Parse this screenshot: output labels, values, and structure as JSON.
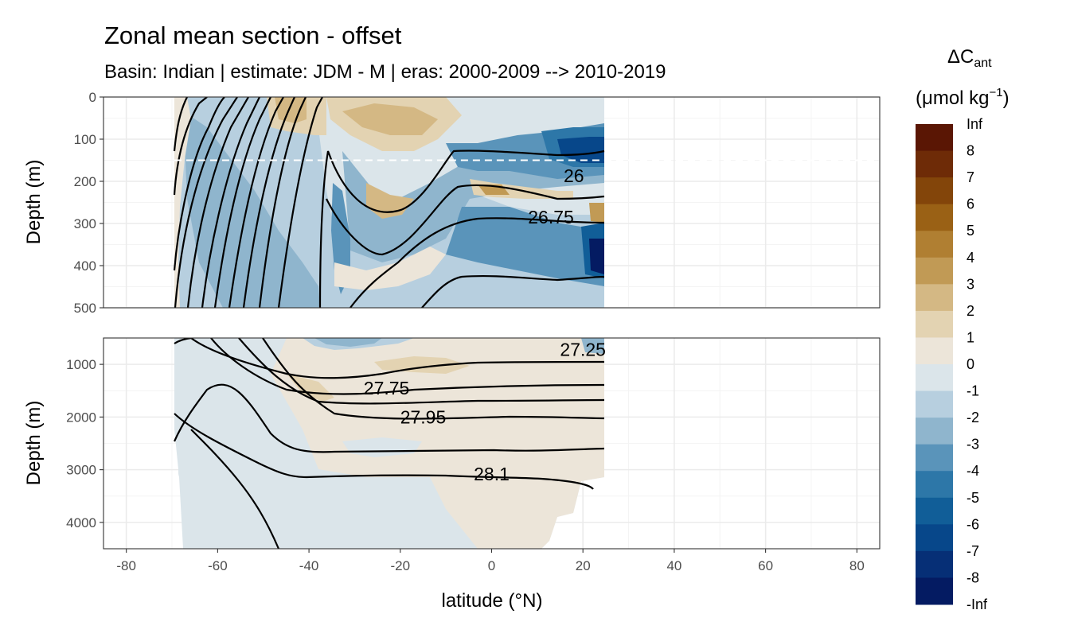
{
  "chart_data": {
    "type": "heatmap",
    "title": "Zonal mean section - offset",
    "subtitle": "Basin: Indian | estimate: JDM - M | eras: 2000-2009 --> 2010-2019",
    "xlabel": "latitude (°N)",
    "x_ticks": [
      -80,
      -60,
      -40,
      -20,
      0,
      20,
      40,
      60,
      80
    ],
    "xlim": [
      -85,
      85
    ],
    "data_lat_range": [
      -69.5,
      24.5
    ],
    "panels": [
      {
        "name": "upper",
        "ylabel": "Depth (m)",
        "ylim": [
          0,
          500
        ],
        "y_ticks": [
          0,
          100,
          200,
          300,
          400,
          500
        ],
        "reference_depth": 150,
        "isopycnal_labels": [
          {
            "label": "26",
            "lat": 18,
            "depth": 187
          },
          {
            "label": "26.75",
            "lat": 13,
            "depth": 285
          }
        ]
      },
      {
        "name": "lower",
        "ylabel": "Depth (m)",
        "ylim": [
          500,
          4500
        ],
        "y_ticks": [
          1000,
          2000,
          3000,
          4000
        ],
        "isopycnal_labels": [
          {
            "label": "27.25",
            "lat": 20,
            "depth": 720
          },
          {
            "label": "27.75",
            "lat": -23,
            "depth": 1450
          },
          {
            "label": "27.95",
            "lat": -15,
            "depth": 2000
          },
          {
            "label": "28.1",
            "lat": 0,
            "depth": 3080
          }
        ]
      }
    ],
    "legend": {
      "title_main": "ΔC",
      "title_sub": "ant",
      "unit_text": "(μmol kg",
      "unit_sup": "−1",
      "unit_close": ")",
      "levels": [
        "Inf",
        "8",
        "7",
        "6",
        "5",
        "4",
        "3",
        "2",
        "1",
        "0",
        "-1",
        "-2",
        "-3",
        "-4",
        "-5",
        "-6",
        "-7",
        "-8",
        "-Inf"
      ],
      "colors": [
        "#5a1604",
        "#6e2b07",
        "#83450a",
        "#9a6115",
        "#b07f32",
        "#c19a55",
        "#d4b884",
        "#e3d3b2",
        "#ece5d9",
        "#dbe5ea",
        "#b7cfdf",
        "#8fb5cd",
        "#5a94ba",
        "#2d77a8",
        "#115e98",
        "#07478a",
        "#062f76",
        "#041b62"
      ]
    },
    "colors": {
      "panel_bg": "#ffffff",
      "grid_major": "#ebebeb",
      "grid_minor": "#f4f4f4",
      "border": "#333333",
      "contour": "#000000",
      "reference_line": "#ffffff"
    }
  }
}
